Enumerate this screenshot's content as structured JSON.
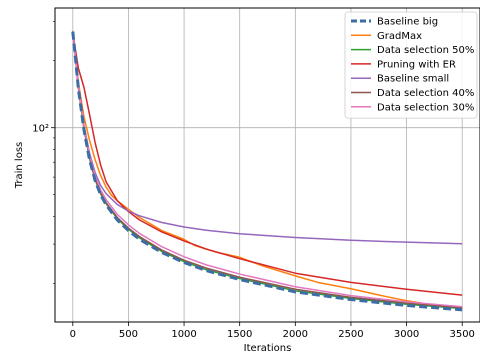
{
  "chart_data": {
    "type": "line",
    "xlabel": "Iterations",
    "ylabel": "Train loss",
    "y_scale": "log",
    "grid": true,
    "legend_position": "top-right",
    "x_ticks": [
      0,
      500,
      1000,
      1500,
      2000,
      2500,
      3000,
      3500
    ],
    "x_tick_labels": [
      "0",
      "500",
      "1000",
      "1500",
      "2000",
      "2500",
      "3000",
      "3500"
    ],
    "y_ticks": [
      100
    ],
    "y_tick_labels": [
      "10²"
    ],
    "xlim": [
      -160,
      3660
    ],
    "ylim": [
      13.4,
      345
    ],
    "series": [
      {
        "name": "Baseline big",
        "color": "#3a6ea5",
        "dashed": true,
        "width": 3,
        "x": [
          0,
          20,
          50,
          100,
          150,
          200,
          250,
          300,
          400,
          500,
          600,
          800,
          1000,
          1200,
          1500,
          2000,
          2500,
          3000,
          3500
        ],
        "y": [
          270,
          215,
          150,
          98,
          72,
          58,
          50,
          45,
          38.5,
          34.5,
          31.5,
          27.5,
          24.8,
          22.8,
          20.8,
          18.3,
          16.9,
          15.9,
          15.2
        ]
      },
      {
        "name": "GradMax",
        "color": "#ff7f0e",
        "dashed": false,
        "width": 1.5,
        "x": [
          0,
          20,
          50,
          100,
          150,
          200,
          250,
          300,
          350,
          400,
          500,
          600,
          800,
          1000,
          1100,
          1300,
          1500,
          1550,
          1700,
          2000,
          2200,
          2500,
          2800,
          3000,
          3200,
          3500
        ],
        "y": [
          270,
          220,
          160,
          112,
          88,
          72,
          61,
          54,
          49.5,
          47,
          43,
          39.5,
          34.5,
          31.5,
          29.5,
          27.5,
          26.2,
          25.6,
          24,
          21.6,
          20.2,
          18.9,
          17.5,
          16.7,
          16.1,
          15.6
        ]
      },
      {
        "name": "Data selection 50%",
        "color": "#2ca02c",
        "dashed": false,
        "width": 1.5,
        "x": [
          0,
          20,
          50,
          100,
          150,
          200,
          250,
          300,
          400,
          500,
          600,
          800,
          1000,
          1200,
          1500,
          2000,
          2500,
          3000,
          3500
        ],
        "y": [
          272,
          216,
          151,
          99,
          73,
          58.5,
          50.5,
          45.5,
          39,
          35,
          32,
          27.8,
          25,
          23,
          21,
          18.5,
          17.1,
          16.1,
          15.4
        ]
      },
      {
        "name": "Pruning with ER",
        "color": "#d62728",
        "dashed": false,
        "width": 1.5,
        "x": [
          0,
          20,
          50,
          100,
          150,
          200,
          250,
          300,
          400,
          500,
          600,
          800,
          1000,
          1200,
          1500,
          2000,
          2500,
          3000,
          3500
        ],
        "y": [
          270,
          230,
          185,
          152,
          115,
          86,
          68,
          57,
          47,
          42,
          38.5,
          34,
          31,
          28.5,
          25.8,
          22.2,
          20.2,
          18.8,
          17.7
        ]
      },
      {
        "name": "Baseline small",
        "color": "#9467bd",
        "dashed": false,
        "width": 1.5,
        "x": [
          0,
          20,
          50,
          100,
          150,
          200,
          250,
          300,
          400,
          500,
          600,
          800,
          1000,
          1200,
          1500,
          2000,
          2500,
          3000,
          3500
        ],
        "y": [
          270,
          218,
          155,
          103,
          77,
          63,
          55,
          50.5,
          45.2,
          42.2,
          40.2,
          37.5,
          35.8,
          34.6,
          33.4,
          32.1,
          31.2,
          30.6,
          30.1
        ]
      },
      {
        "name": "Data selection 40%",
        "color": "#8c564b",
        "dashed": false,
        "width": 1.5,
        "x": [
          0,
          20,
          50,
          100,
          150,
          200,
          250,
          300,
          400,
          500,
          600,
          800,
          1000,
          1200,
          1500,
          2000,
          2500,
          3000,
          3500
        ],
        "y": [
          271,
          217,
          152,
          100,
          74,
          59,
          51,
          46,
          39.5,
          35.4,
          32.4,
          28.2,
          25.4,
          23.4,
          21.3,
          18.8,
          17.3,
          16.3,
          15.5
        ]
      },
      {
        "name": "Data selection 30%",
        "color": "#e377c2",
        "dashed": false,
        "width": 1.5,
        "x": [
          0,
          20,
          50,
          100,
          150,
          200,
          250,
          300,
          400,
          500,
          600,
          800,
          1000,
          1200,
          1500,
          2000,
          2500,
          3000,
          3500
        ],
        "y": [
          272,
          219,
          154,
          102,
          76,
          61,
          52.5,
          47.5,
          40.8,
          36.6,
          33.5,
          29.2,
          26.3,
          24.2,
          22,
          19.3,
          17.6,
          16.5,
          15.7
        ]
      }
    ]
  }
}
